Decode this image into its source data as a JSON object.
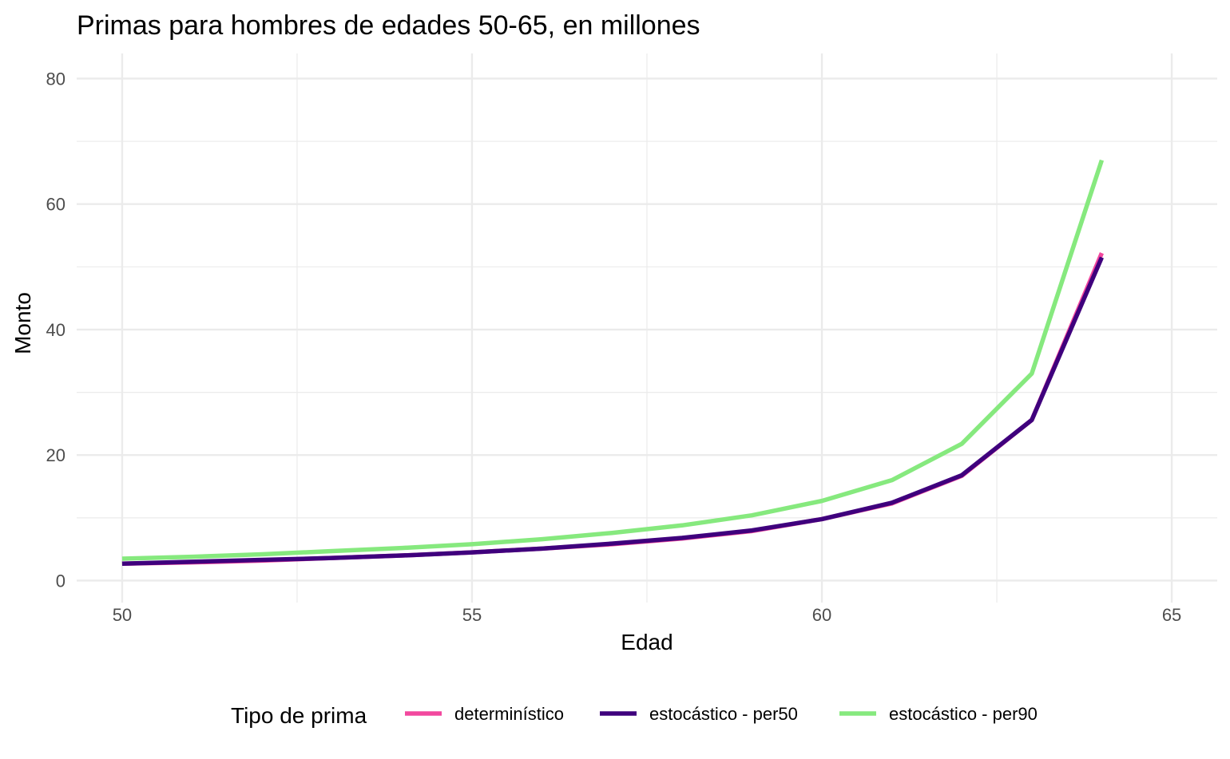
{
  "chart_data": {
    "type": "line",
    "title": "Primas para hombres de edades 50-65, en millones",
    "xlabel": "Edad",
    "ylabel": "Monto",
    "xlim": [
      49.35,
      65.65
    ],
    "ylim": [
      -3.5,
      84
    ],
    "x_ticks": [
      50,
      55,
      60,
      65
    ],
    "y_ticks": [
      0,
      20,
      40,
      60,
      80
    ],
    "x_tick_labels": [
      "50",
      "55",
      "60",
      "65"
    ],
    "y_tick_labels": [
      "0",
      "20",
      "40",
      "60",
      "80"
    ],
    "grid": true,
    "legend": {
      "title": "Tipo de prima",
      "position": "bottom"
    },
    "series": [
      {
        "name": "determinístico",
        "color": "#F2489E",
        "x": [
          50,
          51,
          52,
          53,
          54,
          55,
          56,
          57,
          58,
          59,
          60,
          61,
          62,
          63,
          64
        ],
        "values": [
          2.7,
          2.9,
          3.2,
          3.6,
          4.0,
          4.5,
          5.1,
          5.8,
          6.7,
          7.9,
          9.8,
          12.3,
          16.7,
          25.6,
          52.2
        ]
      },
      {
        "name": "estocástico - per50",
        "color": "#3F007D",
        "x": [
          50,
          51,
          52,
          53,
          54,
          55,
          56,
          57,
          58,
          59,
          60,
          61,
          62,
          63,
          64
        ],
        "values": [
          2.7,
          3.0,
          3.3,
          3.6,
          4.0,
          4.5,
          5.1,
          5.9,
          6.8,
          8.0,
          9.8,
          12.4,
          16.8,
          25.6,
          51.5
        ]
      },
      {
        "name": "estocástico - per90",
        "color": "#86E97E",
        "x": [
          50,
          51,
          52,
          53,
          54,
          55,
          56,
          57,
          58,
          59,
          60,
          61,
          62,
          63,
          64
        ],
        "values": [
          3.5,
          3.8,
          4.2,
          4.7,
          5.2,
          5.8,
          6.6,
          7.6,
          8.8,
          10.4,
          12.7,
          16.0,
          21.8,
          33.0,
          67.0
        ]
      }
    ]
  }
}
